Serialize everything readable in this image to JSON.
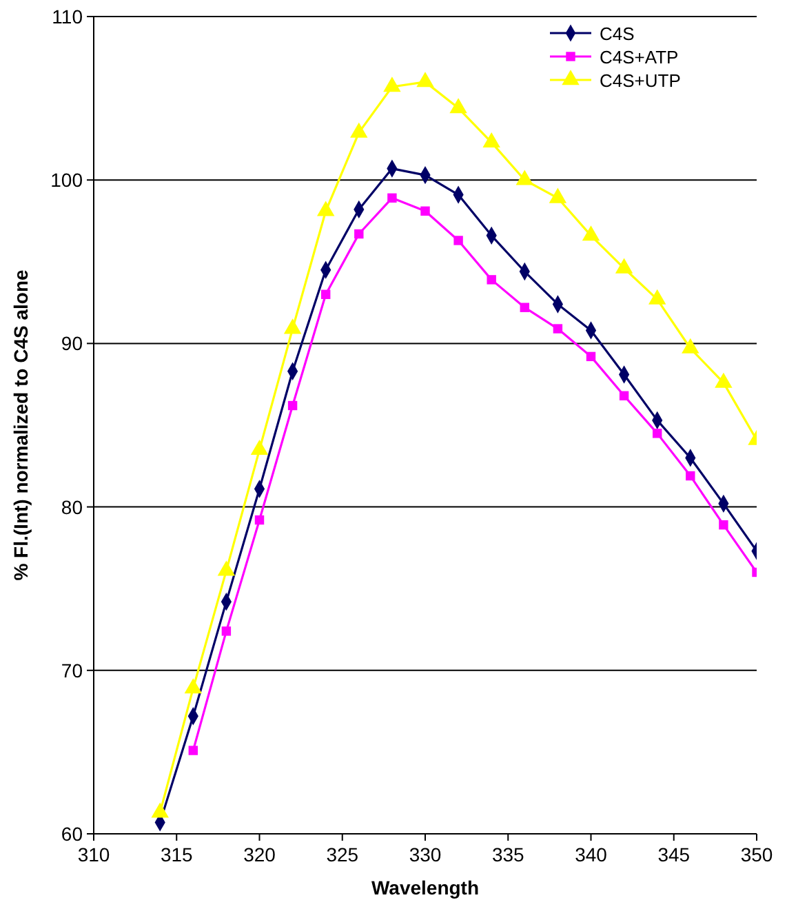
{
  "chart_data": {
    "type": "line",
    "xlabel": "Wavelength",
    "ylabel": "% Fl.(Int) normalized to C4S alone",
    "x": [
      314,
      316,
      318,
      320,
      322,
      324,
      326,
      328,
      330,
      332,
      334,
      336,
      338,
      340,
      342,
      344,
      346,
      348,
      350
    ],
    "series": [
      {
        "name": "C4S",
        "color": "#000066",
        "marker": "diamond",
        "values": [
          60.7,
          67.2,
          74.2,
          81.1,
          88.3,
          94.5,
          98.2,
          100.7,
          100.3,
          99.1,
          96.6,
          94.4,
          92.4,
          90.8,
          88.1,
          85.3,
          83.0,
          80.2,
          77.3
        ]
      },
      {
        "name": "C4S+ATP",
        "color": "#ff00ff",
        "marker": "square",
        "values": [
          null,
          65.1,
          72.4,
          79.2,
          86.2,
          93.0,
          96.7,
          98.9,
          98.1,
          96.3,
          93.9,
          92.2,
          90.9,
          89.2,
          86.8,
          84.5,
          81.9,
          78.9,
          76.0
        ]
      },
      {
        "name": "C4S+UTP",
        "color": "#ffff00",
        "marker": "triangle",
        "values": [
          61.3,
          68.9,
          76.1,
          83.5,
          90.9,
          98.1,
          102.9,
          105.7,
          106.0,
          104.4,
          102.3,
          100.0,
          98.9,
          96.6,
          94.6,
          92.7,
          89.7,
          87.6,
          84.1
        ]
      }
    ],
    "xlim": [
      310,
      350
    ],
    "xticks": [
      310,
      315,
      320,
      325,
      330,
      335,
      340,
      345,
      350
    ],
    "ylim": [
      60,
      110
    ],
    "yticks": [
      60,
      70,
      80,
      90,
      100,
      110
    ],
    "grid": "y",
    "legend": "top right",
    "line_style": "solid"
  }
}
